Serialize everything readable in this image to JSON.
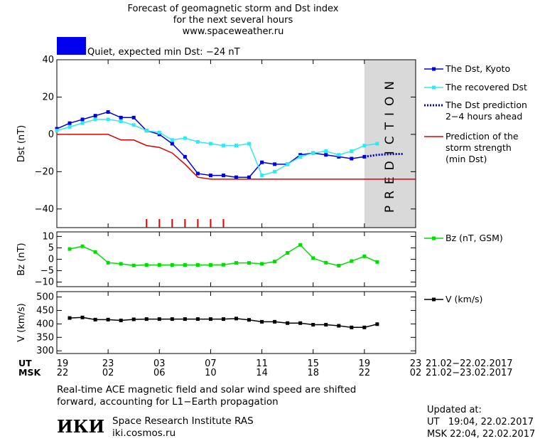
{
  "header": {
    "line1": "Forecast of geomagnetic storm and Dst index",
    "line2": "for the next several hours",
    "line3": "www.spaceweather.ru"
  },
  "status": {
    "text": "Quiet, expected min Dst: −24 nT",
    "color": "#0000ee"
  },
  "prediction_label": "PREDICTION",
  "time_axis": {
    "ut_label": "UT",
    "msk_label": "MSK",
    "ut_ticks": [
      "19",
      "23",
      "03",
      "07",
      "11",
      "15",
      "19",
      "23"
    ],
    "msk_ticks": [
      "22",
      "02",
      "06",
      "10",
      "14",
      "18",
      "22",
      "02"
    ],
    "ut_range": "21.02−22.02.2017",
    "msk_range": "21.02−23.02.2017"
  },
  "footer": {
    "note_line1": "Real-time ACE magnetic field and solar wind speed are shifted",
    "note_line2": "forward, accounting for L1−Earth propagation",
    "logo_text": "ИКИ",
    "institute": "Space Research Institute RAS",
    "site": "iki.cosmos.ru",
    "updated_label": "Updated at:",
    "updated_ut": "UT   19:04, 22.02.2017",
    "updated_msk": "MSK 22:04, 22.02.2017"
  },
  "chart_data": [
    {
      "type": "line",
      "ylabel": "Dst (nT)",
      "ylim": [
        -50,
        40
      ],
      "yticks": [
        40,
        20,
        0,
        -20,
        -40
      ],
      "xlim": [
        19,
        47
      ],
      "grid": false,
      "legend_position": "right",
      "series": [
        {
          "name": "The Dst, Kyoto",
          "color": "#0000dd",
          "x": [
            19,
            20,
            21,
            22,
            23,
            24,
            25,
            26,
            27,
            28,
            29,
            30,
            31,
            32,
            33,
            34,
            35,
            36,
            37,
            38,
            39,
            40,
            41,
            42,
            43,
            44
          ],
          "values": [
            3,
            6,
            8,
            10,
            12,
            9,
            9,
            2,
            0,
            -5,
            -12,
            -21,
            -22,
            -22,
            -23,
            -23,
            -15,
            -16,
            -16,
            -11,
            -10,
            -11,
            -12,
            -13,
            -12,
            null
          ]
        },
        {
          "name": "The recovered Dst",
          "color": "#33e8f0",
          "x": [
            19,
            20,
            21,
            22,
            23,
            24,
            25,
            26,
            27,
            28,
            29,
            30,
            31,
            32,
            33,
            34,
            35,
            36,
            37,
            38,
            39,
            40,
            41,
            42,
            43,
            44
          ],
          "values": [
            2,
            4,
            6,
            8,
            8,
            7,
            5,
            2,
            1,
            -3,
            -2,
            -4,
            -5,
            -6,
            -6,
            -5,
            -22,
            -20,
            -16,
            -12,
            -10,
            -9,
            -11,
            -9,
            -6,
            -5
          ]
        },
        {
          "name": "The Dst prediction\n2−4 hours ahead",
          "color": "#0000dd",
          "x": [
            43,
            44,
            45,
            46
          ],
          "values": [
            -12,
            -11,
            -10.6,
            -10.5
          ]
        },
        {
          "name": "Prediction of the\nstorm strength\n(min Dst)",
          "color": "#dd0000",
          "x": [
            19,
            23,
            24,
            25,
            26,
            27,
            28,
            29,
            30,
            31,
            47
          ],
          "values": [
            0,
            0,
            -3,
            -3,
            -6,
            -7,
            -10,
            -16,
            -23,
            -24,
            -24
          ]
        }
      ],
      "event_ticks_x": [
        26,
        27,
        28,
        29,
        30,
        31,
        32
      ],
      "prediction_band_x": [
        43,
        47
      ]
    },
    {
      "type": "line",
      "ylabel": "Bz (nT)",
      "ylim": [
        -12,
        12
      ],
      "yticks": [
        10,
        5,
        0,
        -5,
        -10
      ],
      "xlim": [
        19,
        47
      ],
      "grid": false,
      "legend_position": "right",
      "series": [
        {
          "name": "Bz (nT, GSM)",
          "color": "#00dd00",
          "x": [
            20,
            21,
            22,
            23,
            24,
            25,
            26,
            27,
            28,
            29,
            30,
            31,
            32,
            33,
            34,
            35,
            36,
            37,
            38,
            39,
            40,
            41,
            42,
            43,
            44
          ],
          "values": [
            4.5,
            5.7,
            3.2,
            -1.5,
            -2.0,
            -2.7,
            -2.5,
            -2.5,
            -2.5,
            -2.5,
            -2.5,
            -2.5,
            -2.4,
            -1.6,
            -1.6,
            -2.0,
            -1.0,
            2.8,
            6.3,
            0.5,
            -1.5,
            -2.8,
            -0.8,
            1.3,
            -1.2
          ]
        }
      ]
    },
    {
      "type": "line",
      "ylabel": "V (km/s)",
      "ylim": [
        290,
        520
      ],
      "yticks": [
        500,
        450,
        400,
        350,
        300
      ],
      "xlim": [
        19,
        47
      ],
      "grid": false,
      "legend_position": "right",
      "series": [
        {
          "name": "V (km/s)",
          "color": "#000000",
          "x": [
            20,
            21,
            22,
            23,
            24,
            25,
            26,
            27,
            28,
            29,
            30,
            31,
            32,
            33,
            34,
            35,
            36,
            37,
            38,
            39,
            40,
            41,
            42,
            43,
            44
          ],
          "values": [
            422,
            424,
            416,
            416,
            413,
            417,
            418,
            418,
            418,
            418,
            418,
            418,
            418,
            420,
            415,
            408,
            408,
            403,
            403,
            397,
            397,
            393,
            387,
            387,
            399
          ]
        }
      ]
    }
  ]
}
